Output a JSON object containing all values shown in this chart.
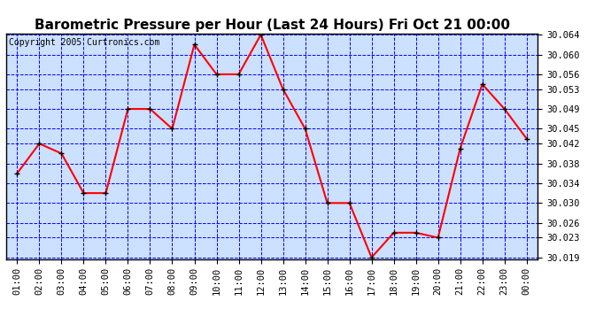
{
  "title": "Barometric Pressure per Hour (Last 24 Hours) Fri Oct 21 00:00",
  "copyright": "Copyright 2005 Curtronics.com",
  "hours": [
    "01:00",
    "02:00",
    "03:00",
    "04:00",
    "05:00",
    "06:00",
    "07:00",
    "08:00",
    "09:00",
    "10:00",
    "11:00",
    "12:00",
    "13:00",
    "14:00",
    "15:00",
    "16:00",
    "17:00",
    "18:00",
    "19:00",
    "20:00",
    "21:00",
    "22:00",
    "23:00",
    "00:00"
  ],
  "values": [
    30.036,
    30.042,
    30.04,
    30.032,
    30.032,
    30.049,
    30.049,
    30.045,
    30.062,
    30.056,
    30.056,
    30.064,
    30.053,
    30.045,
    30.03,
    30.03,
    30.019,
    30.024,
    30.024,
    30.023,
    30.041,
    30.054,
    30.049,
    30.043
  ],
  "ylim_min": 30.019,
  "ylim_max": 30.064,
  "yticks": [
    30.019,
    30.023,
    30.026,
    30.03,
    30.034,
    30.038,
    30.042,
    30.045,
    30.049,
    30.053,
    30.056,
    30.06,
    30.064
  ],
  "line_color": "red",
  "marker": "+",
  "marker_color": "black",
  "bg_color": "#FFFFFF",
  "plot_bg_color": "#cce0ff",
  "grid_color": "blue",
  "title_fontsize": 11,
  "copyright_fontsize": 7,
  "tick_fontsize": 7.5,
  "title_color": "black",
  "border_color": "black"
}
